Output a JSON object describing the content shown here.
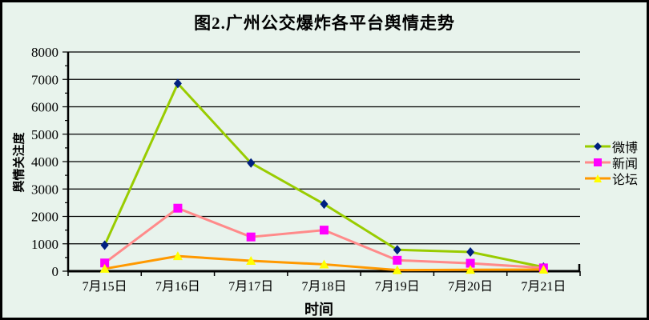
{
  "window": {
    "title": "图2.广州公交爆炸各平台舆情走势"
  },
  "colors": {
    "background": "#e8f3ec",
    "axis": "#000000",
    "gridline": "#000000",
    "text": "#000000"
  },
  "legend": {
    "position": "right",
    "items": [
      "微博",
      "新闻",
      "论坛"
    ]
  },
  "chart_data": {
    "type": "line",
    "title": "图2.广州公交爆炸各平台舆情走势",
    "xlabel": "时间",
    "ylabel": "舆情关注度",
    "categories": [
      "7月15日",
      "7月16日",
      "7月17日",
      "7月18日",
      "7月19日",
      "7月20日",
      "7月21日"
    ],
    "ylim": [
      0,
      8000
    ],
    "y_ticks": [
      0,
      1000,
      2000,
      3000,
      4000,
      5000,
      6000,
      7000,
      8000
    ],
    "y_minor_step": 500,
    "grid": true,
    "legend_position": "right",
    "series": [
      {
        "key": "weibo",
        "name": "微博",
        "line_color": "#99cc00",
        "marker": "diamond",
        "marker_color": "#002080",
        "values": [
          950,
          6850,
          3950,
          2450,
          780,
          700,
          150
        ]
      },
      {
        "key": "news",
        "name": "新闻",
        "line_color": "#ff8a8a",
        "marker": "square",
        "marker_color": "#ff00ff",
        "values": [
          300,
          2300,
          1250,
          1500,
          400,
          290,
          120
        ]
      },
      {
        "key": "forum",
        "name": "论坛",
        "line_color": "#ff9900",
        "marker": "triangle",
        "marker_color": "#ffff00",
        "values": [
          90,
          550,
          380,
          250,
          40,
          50,
          60
        ]
      }
    ]
  }
}
